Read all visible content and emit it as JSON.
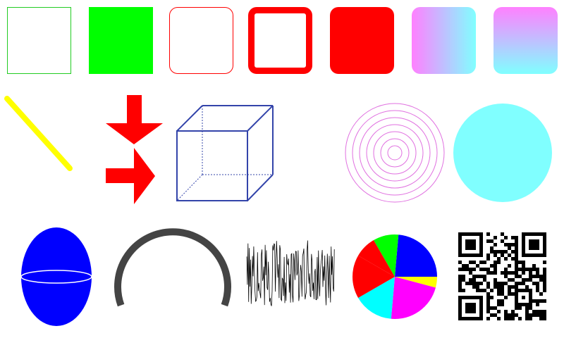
{
  "colors": {
    "outline_green": "#22cc22",
    "green": "#00ff00",
    "red": "#ff0000",
    "yellow": "#ffff00",
    "blue": "#0000ff",
    "cube_blue": "#3344aa",
    "magenta_ring": "#e070e0",
    "cyan": "#80ffff",
    "gradient_start": "#ff80ff",
    "gradient_end": "#80ffff",
    "arc_gray": "#444444",
    "black": "#000000"
  },
  "pie": {
    "slice_colors": [
      "#0000ff",
      "#ffff00",
      "#ff00ff",
      "#00ffff",
      "#ff0000",
      "#00ff00"
    ]
  },
  "qr": {
    "size": 25,
    "seed": 7
  },
  "waveform": {
    "seed": 13
  }
}
